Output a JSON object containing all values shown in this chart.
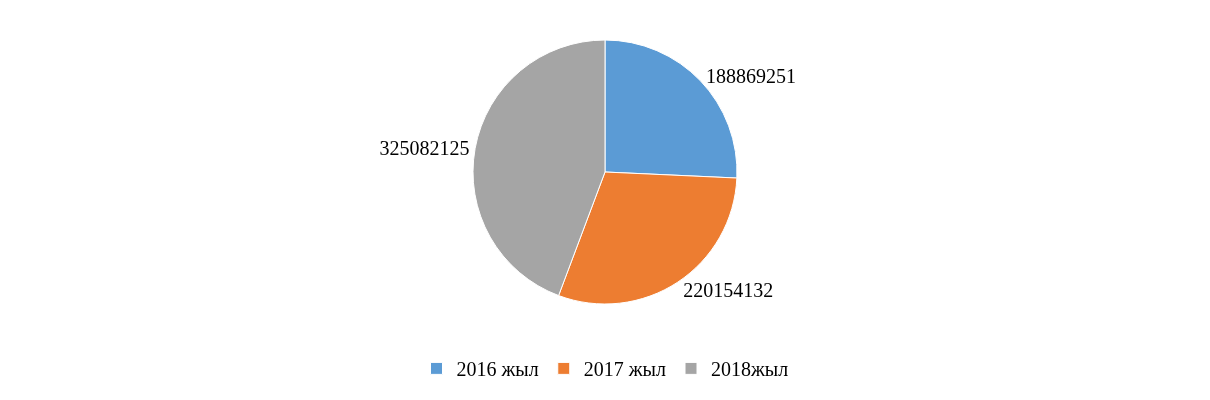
{
  "chart_data": {
    "type": "pie",
    "categories": [
      "2016 жыл",
      "2017 жыл",
      "2018жыл"
    ],
    "values": [
      188869251,
      220154132,
      325082125
    ],
    "colors": [
      "#5b9bd5",
      "#ed7d31",
      "#a5a5a5"
    ],
    "data_labels": true,
    "legend": "bottom"
  }
}
